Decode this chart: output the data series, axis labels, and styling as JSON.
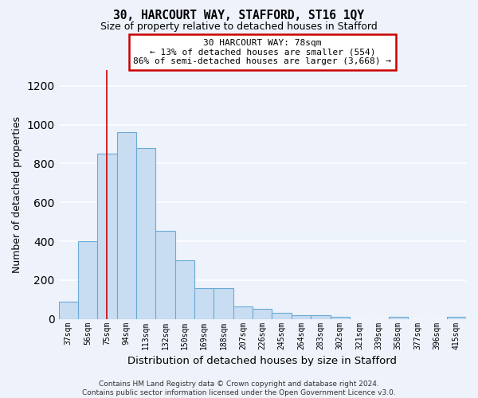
{
  "title": "30, HARCOURT WAY, STAFFORD, ST16 1QY",
  "subtitle": "Size of property relative to detached houses in Stafford",
  "xlabel": "Distribution of detached houses by size in Stafford",
  "ylabel": "Number of detached properties",
  "categories": [
    "37sqm",
    "56sqm",
    "75sqm",
    "94sqm",
    "113sqm",
    "132sqm",
    "150sqm",
    "169sqm",
    "188sqm",
    "207sqm",
    "226sqm",
    "245sqm",
    "264sqm",
    "283sqm",
    "302sqm",
    "321sqm",
    "339sqm",
    "358sqm",
    "377sqm",
    "396sqm",
    "415sqm"
  ],
  "values": [
    90,
    400,
    850,
    960,
    880,
    455,
    300,
    160,
    160,
    65,
    50,
    30,
    20,
    20,
    10,
    0,
    0,
    10,
    0,
    0,
    10
  ],
  "bar_color": "#c9ddf2",
  "bar_edge_color": "#6aaad4",
  "highlight_bar_index": 2,
  "highlight_line_color": "#cc0000",
  "annotation_text": "30 HARCOURT WAY: 78sqm\n← 13% of detached houses are smaller (554)\n86% of semi-detached houses are larger (3,668) →",
  "annotation_box_color": "#ffffff",
  "annotation_box_edge_color": "#cc0000",
  "ylim": [
    0,
    1280
  ],
  "yticks": [
    0,
    200,
    400,
    600,
    800,
    1000,
    1200
  ],
  "background_color": "#edf2fb",
  "grid_color": "#ffffff",
  "footer_text": "Contains HM Land Registry data © Crown copyright and database right 2024.\nContains public sector information licensed under the Open Government Licence v3.0."
}
